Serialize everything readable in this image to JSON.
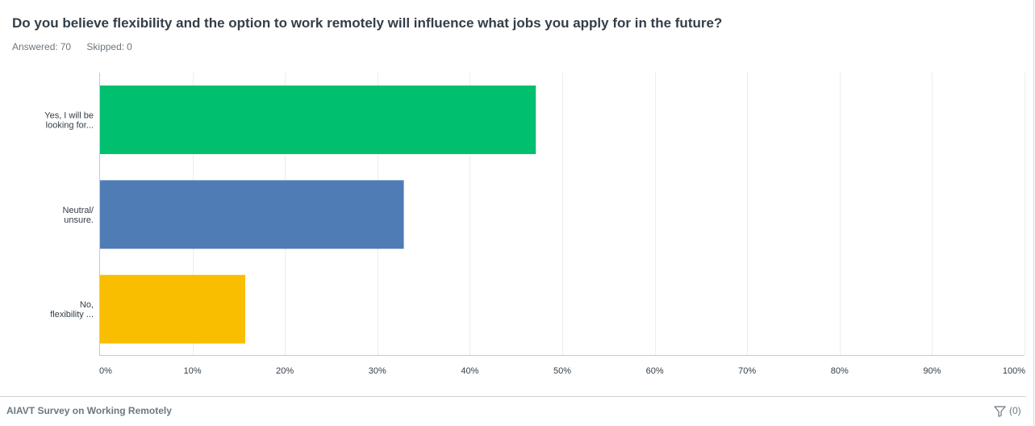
{
  "question": {
    "title": "Do you believe flexibility and the option to work remotely will influence what jobs you apply for in the future?",
    "answered_label": "Answered:",
    "answered_value": "70",
    "skipped_label": "Skipped:",
    "skipped_value": "0"
  },
  "chart_data": {
    "type": "bar",
    "orientation": "horizontal",
    "categories": [
      [
        "Yes, I will be",
        "looking for..."
      ],
      [
        "Neutral/",
        "unsure."
      ],
      [
        "No,",
        "flexibility ..."
      ]
    ],
    "values": [
      47.14,
      32.86,
      15.71
    ],
    "colors": [
      "#00bf6f",
      "#507cb6",
      "#f9be00"
    ],
    "xlim": [
      0,
      100
    ],
    "xticks": [
      "0%",
      "10%",
      "20%",
      "30%",
      "40%",
      "50%",
      "60%",
      "70%",
      "80%",
      "90%",
      "100%"
    ],
    "grid": true,
    "title": "",
    "xlabel": "",
    "ylabel": ""
  },
  "footer": {
    "survey_title": "AIAVT Survey on Working Remotely",
    "filter_label": "(0)",
    "filter_icon": "filter-icon"
  }
}
